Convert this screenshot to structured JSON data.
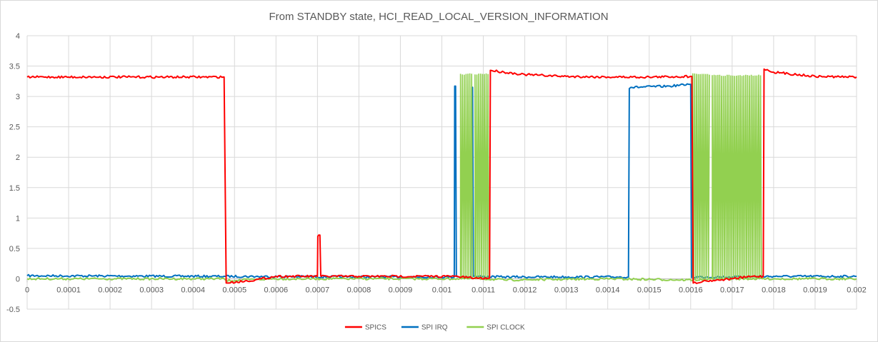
{
  "chart_data": {
    "type": "line",
    "title": "From STANDBY state, HCI_READ_LOCAL_VERSION_INFORMATION",
    "xlabel": "",
    "ylabel": "",
    "xlim": [
      0,
      0.002
    ],
    "ylim": [
      -0.5,
      4
    ],
    "grid": true,
    "legend_position": "bottom",
    "x_ticks": [
      "0",
      "0.0001",
      "0.0002",
      "0.0003",
      "0.0004",
      "0.0005",
      "0.0006",
      "0.0007",
      "0.0008",
      "0.0009",
      "0.001",
      "0.0011",
      "0.0012",
      "0.0013",
      "0.0014",
      "0.0015",
      "0.0016",
      "0.0017",
      "0.0018",
      "0.0019",
      "0.002"
    ],
    "y_ticks": [
      "-0.5",
      "0",
      "0.5",
      "1",
      "1.5",
      "2",
      "2.5",
      "3",
      "3.5",
      "4"
    ],
    "series": [
      {
        "name": "SPICS",
        "color": "#ff0000",
        "x": [
          0,
          0.000473,
          0.000475,
          0.00048,
          0.00055,
          0.0006,
          0.0007,
          0.000701,
          0.000703,
          0.000706,
          0.000708,
          0.000709,
          0.0008,
          0.00103,
          0.00108,
          0.001115,
          0.001117,
          0.00115,
          0.0012,
          0.0013,
          0.0014,
          0.0015,
          0.0016,
          0.001603,
          0.001606,
          0.00163,
          0.0017,
          0.00175,
          0.001775,
          0.001777,
          0.0018,
          0.0019,
          0.002
        ],
        "y": [
          3.32,
          3.32,
          3.32,
          -0.07,
          -0.02,
          0.04,
          0.04,
          0.7,
          0.72,
          0.72,
          0.05,
          0.04,
          0.04,
          0.04,
          0.01,
          0.01,
          3.43,
          3.4,
          3.36,
          3.33,
          3.32,
          3.32,
          3.33,
          3.33,
          -0.07,
          -0.04,
          0.0,
          0.04,
          0.04,
          3.45,
          3.4,
          3.33,
          3.32
        ]
      },
      {
        "name": "SPI IRQ",
        "color": "#0070c0",
        "x": [
          0,
          0.000475,
          0.0008,
          0.00103,
          0.001031,
          0.001033,
          0.001035,
          0.00104,
          0.00107,
          0.001072,
          0.001074,
          0.001076,
          0.00115,
          0.00145,
          0.001452,
          0.001456,
          0.00155,
          0.001595,
          0.0016,
          0.001602,
          0.001605,
          0.0017,
          0.0018,
          0.002
        ],
        "y": [
          0.05,
          0.04,
          0.03,
          0.03,
          3.17,
          3.17,
          0.04,
          0.03,
          0.03,
          3.15,
          3.15,
          0.04,
          0.03,
          0.03,
          3.13,
          3.15,
          3.17,
          3.2,
          3.2,
          0.02,
          0.03,
          0.03,
          0.04,
          0.04
        ]
      },
      {
        "name": "SPI CLOCK",
        "color": "#92d050",
        "x": [
          0,
          0.000475,
          0.00048,
          0.0006,
          0.0009,
          0.00103,
          0.0011,
          0.00115,
          0.0014,
          0.0016,
          0.0017,
          0.0018,
          0.002
        ],
        "y": [
          0.0,
          0.0,
          -0.03,
          0.0,
          0.0,
          0.0,
          0.0,
          -0.02,
          0.0,
          -0.02,
          0.0,
          0.0,
          0.0
        ],
        "bursts": [
          {
            "x_start": 0.001045,
            "x_end": 0.001075,
            "low": 0.0,
            "high": 3.37
          },
          {
            "x_start": 0.00108,
            "x_end": 0.001115,
            "low": 0.0,
            "high": 3.37
          },
          {
            "x_start": 0.001605,
            "x_end": 0.001647,
            "low": 0.0,
            "high": 3.37
          },
          {
            "x_start": 0.001652,
            "x_end": 0.001772,
            "low": 0.0,
            "high": 3.35
          }
        ]
      }
    ]
  }
}
